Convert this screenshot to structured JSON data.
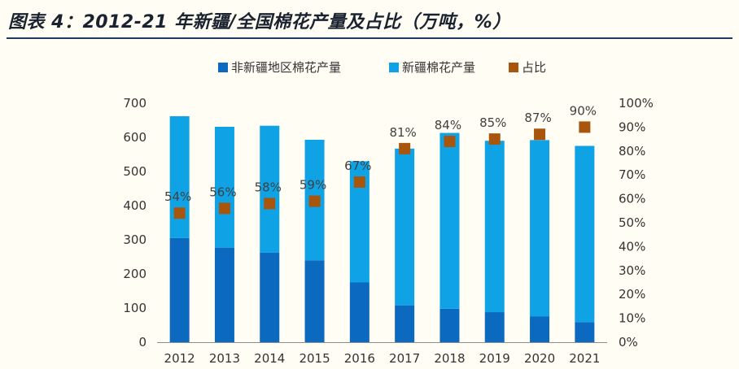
{
  "title": "图表 4：2012-21 年新疆/全国棉花产量及占比（万吨，%）",
  "colors": {
    "non_xinjiang": "#0b6abf",
    "xinjiang": "#0fa3e6",
    "share": "#a8550e",
    "title_rule": "#1f3b63"
  },
  "chart_data": {
    "type": "bar",
    "stacked": true,
    "categories": [
      "2012",
      "2013",
      "2014",
      "2015",
      "2016",
      "2017",
      "2018",
      "2019",
      "2020",
      "2021"
    ],
    "series": [
      {
        "name": "非新疆地区棉花产量",
        "type": "bar",
        "axis": "left",
        "values": [
          305,
          277,
          262,
          240,
          175,
          108,
          98,
          88,
          75,
          59
        ]
      },
      {
        "name": "新疆棉花产量",
        "type": "bar",
        "axis": "left",
        "values": [
          357,
          354,
          372,
          353,
          355,
          459,
          515,
          502,
          517,
          516
        ]
      },
      {
        "name": "占比",
        "type": "scatter",
        "axis": "right",
        "unit": "%",
        "values": [
          54,
          56,
          58,
          59,
          67,
          81,
          84,
          85,
          87,
          90
        ]
      }
    ],
    "data_labels": [
      "54%",
      "56%",
      "58%",
      "59%",
      "67%",
      "81%",
      "84%",
      "85%",
      "87%",
      "90%"
    ],
    "left_axis": {
      "min": 0,
      "max": 700,
      "step": 100,
      "ticks": [
        "0",
        "100",
        "200",
        "300",
        "400",
        "500",
        "600",
        "700"
      ]
    },
    "right_axis": {
      "min": 0,
      "max": 100,
      "step": 10,
      "ticks": [
        "0%",
        "10%",
        "20%",
        "30%",
        "40%",
        "50%",
        "60%",
        "70%",
        "80%",
        "90%",
        "100%"
      ]
    },
    "legend_position": "top-center",
    "grid": false
  }
}
